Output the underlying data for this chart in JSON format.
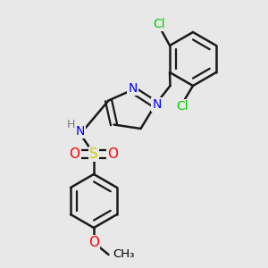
{
  "bg_color": "#e8e8e8",
  "atom_colors": {
    "C": "#000000",
    "N": "#0000ff",
    "O": "#ff0000",
    "S": "#cccc00",
    "Cl": "#00cc00",
    "H": "#777777"
  },
  "bond_color": "#1a1a1a",
  "bond_width": 1.8,
  "font_size": 9,
  "figsize": [
    3.0,
    3.0
  ],
  "dpi": 100
}
